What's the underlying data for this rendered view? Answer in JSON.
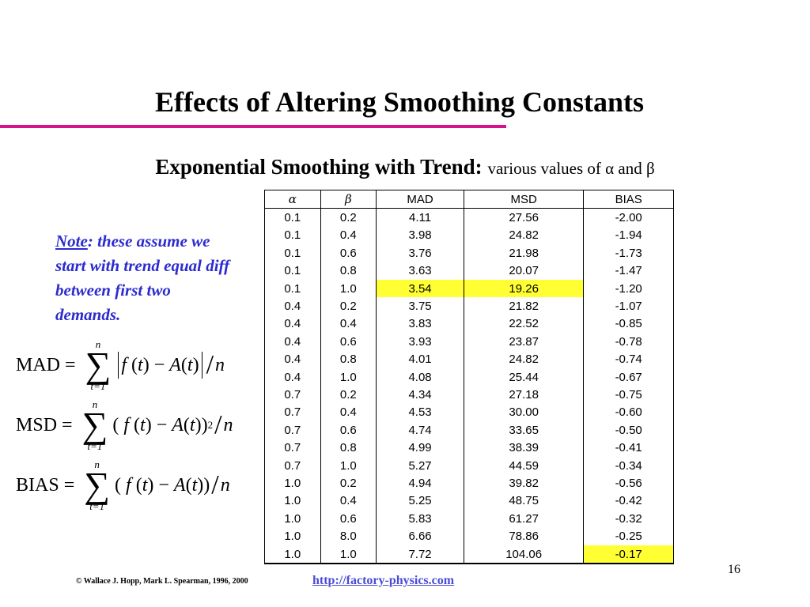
{
  "slide": {
    "title": "Effects of Altering Smoothing Constants",
    "subtitle_bold": "Exponential Smoothing with Trend:",
    "subtitle_rest": "various values of α and β",
    "note_label": "Note",
    "note_text": ": these assume we start with trend equal diff between first two demands.",
    "page_number": "16",
    "copyright": "© Wallace J. Hopp, Mark L. Spearman, 1996, 2000",
    "url": "http://factory-physics.com",
    "accent_color": "#d4148c",
    "highlight_color": "#ffff33"
  },
  "formulas": {
    "mad": {
      "lhs": "MAD",
      "eq": "=",
      "upper": "n",
      "lower": "t=1"
    },
    "msd": {
      "lhs": "MSD",
      "eq": "=",
      "upper": "n",
      "lower": "t=1",
      "power": "2"
    },
    "bias": {
      "lhs": "BIAS",
      "eq": "=",
      "upper": "n",
      "lower": "t=1"
    }
  },
  "table": {
    "headers": [
      "α",
      "β",
      "MAD",
      "MSD",
      "BIAS"
    ],
    "rows": [
      [
        "0.1",
        "0.2",
        "4.11",
        "27.56",
        "-2.00"
      ],
      [
        "0.1",
        "0.4",
        "3.98",
        "24.82",
        "-1.94"
      ],
      [
        "0.1",
        "0.6",
        "3.76",
        "21.98",
        "-1.73"
      ],
      [
        "0.1",
        "0.8",
        "3.63",
        "20.07",
        "-1.47"
      ],
      [
        "0.1",
        "1.0",
        "3.54",
        "19.26",
        "-1.20"
      ],
      [
        "0.4",
        "0.2",
        "3.75",
        "21.82",
        "-1.07"
      ],
      [
        "0.4",
        "0.4",
        "3.83",
        "22.52",
        "-0.85"
      ],
      [
        "0.4",
        "0.6",
        "3.93",
        "23.87",
        "-0.78"
      ],
      [
        "0.4",
        "0.8",
        "4.01",
        "24.82",
        "-0.74"
      ],
      [
        "0.4",
        "1.0",
        "4.08",
        "25.44",
        "-0.67"
      ],
      [
        "0.7",
        "0.2",
        "4.34",
        "27.18",
        "-0.75"
      ],
      [
        "0.7",
        "0.4",
        "4.53",
        "30.00",
        "-0.60"
      ],
      [
        "0.7",
        "0.6",
        "4.74",
        "33.65",
        "-0.50"
      ],
      [
        "0.7",
        "0.8",
        "4.99",
        "38.39",
        "-0.41"
      ],
      [
        "0.7",
        "1.0",
        "5.27",
        "44.59",
        "-0.34"
      ],
      [
        "1.0",
        "0.2",
        "4.94",
        "39.82",
        "-0.56"
      ],
      [
        "1.0",
        "0.4",
        "5.25",
        "48.75",
        "-0.42"
      ],
      [
        "1.0",
        "0.6",
        "5.83",
        "61.27",
        "-0.32"
      ],
      [
        "1.0",
        "8.0",
        "6.66",
        "78.86",
        "-0.25"
      ],
      [
        "1.0",
        "1.0",
        "7.72",
        "104.06",
        "-0.17"
      ]
    ],
    "highlighted_cells": [
      [
        4,
        2
      ],
      [
        4,
        3
      ],
      [
        19,
        4
      ]
    ]
  }
}
